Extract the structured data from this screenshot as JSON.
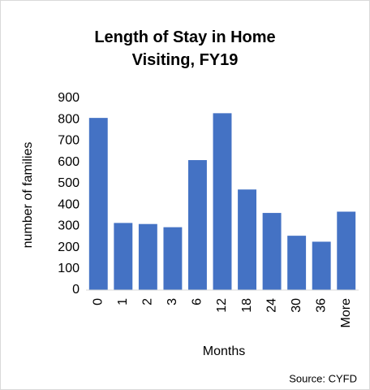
{
  "chart_data": {
    "type": "bar",
    "title": "Length of Stay in Home Visiting, FY19",
    "x_label": "Months",
    "y_label": "number of families",
    "source": "Source: CYFD",
    "categories": [
      "0",
      "1",
      "2",
      "3",
      "6",
      "12",
      "18",
      "24",
      "30",
      "36",
      "More"
    ],
    "values": [
      808,
      315,
      310,
      295,
      610,
      830,
      472,
      362,
      255,
      227,
      368
    ],
    "color": "#4472c4",
    "ylim": [
      0,
      900
    ],
    "yticks": [
      0,
      100,
      200,
      300,
      400,
      500,
      600,
      700,
      800,
      900
    ],
    "grid": false
  }
}
